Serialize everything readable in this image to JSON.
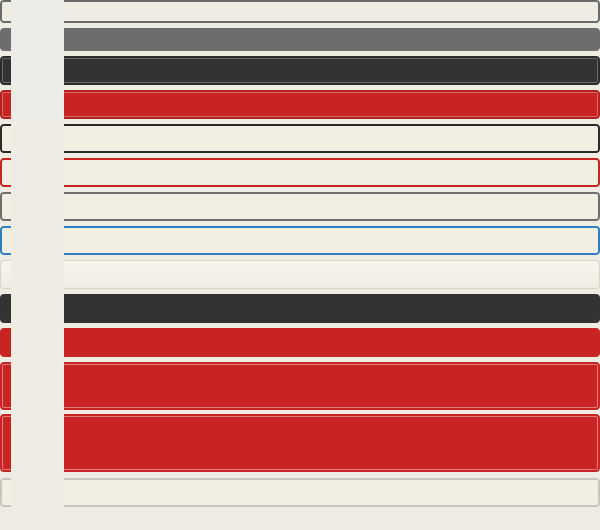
{
  "swatches": [
    {
      "name": "outline-gray",
      "label": "",
      "colors": {
        "border": "#6a6a6a",
        "fill": "#efede3"
      }
    },
    {
      "name": "solid-gray",
      "label": "",
      "colors": {
        "fill": "#6d6d6d"
      }
    },
    {
      "name": "solid-dark-bordered",
      "label": "",
      "colors": {
        "border": "#2a2a2a",
        "fill": "#333333"
      }
    },
    {
      "name": "solid-red-bordered",
      "label": "",
      "colors": {
        "border": "#b51f1f",
        "fill": "#c82424"
      }
    },
    {
      "name": "outline-dark",
      "label": "",
      "colors": {
        "border": "#2a2a2a",
        "fill": "#f1eee2"
      }
    },
    {
      "name": "outline-red",
      "label": "",
      "colors": {
        "border": "#c82424",
        "fill": "#f1eee2"
      }
    },
    {
      "name": "outline-mid-gray",
      "label": "",
      "colors": {
        "border": "#6f6f6f",
        "fill": "#f1eee2"
      }
    },
    {
      "name": "outline-blue",
      "label": "",
      "colors": {
        "border": "#2f7fc1",
        "fill": "#f1eee2"
      }
    },
    {
      "name": "subtle-light",
      "label": "",
      "colors": {
        "border": "#d8d4c6",
        "fill": "#f7f5ee"
      }
    },
    {
      "name": "solid-dark",
      "label": "",
      "colors": {
        "fill": "#333333"
      }
    },
    {
      "name": "solid-red",
      "label": "",
      "colors": {
        "fill": "#c82424"
      }
    },
    {
      "name": "large-red",
      "label": "",
      "colors": {
        "fill": "#c82424"
      }
    },
    {
      "name": "xlarge-red",
      "label": "",
      "colors": {
        "fill": "#c82424"
      }
    },
    {
      "name": "outline-light-gray",
      "label": "",
      "colors": {
        "border": "#c9c6bb",
        "fill": "#f1eee2"
      }
    }
  ],
  "theme": {
    "background": "#efede3",
    "accent_red": "#c82424",
    "dark": "#333333",
    "blue": "#2f7fc1"
  }
}
